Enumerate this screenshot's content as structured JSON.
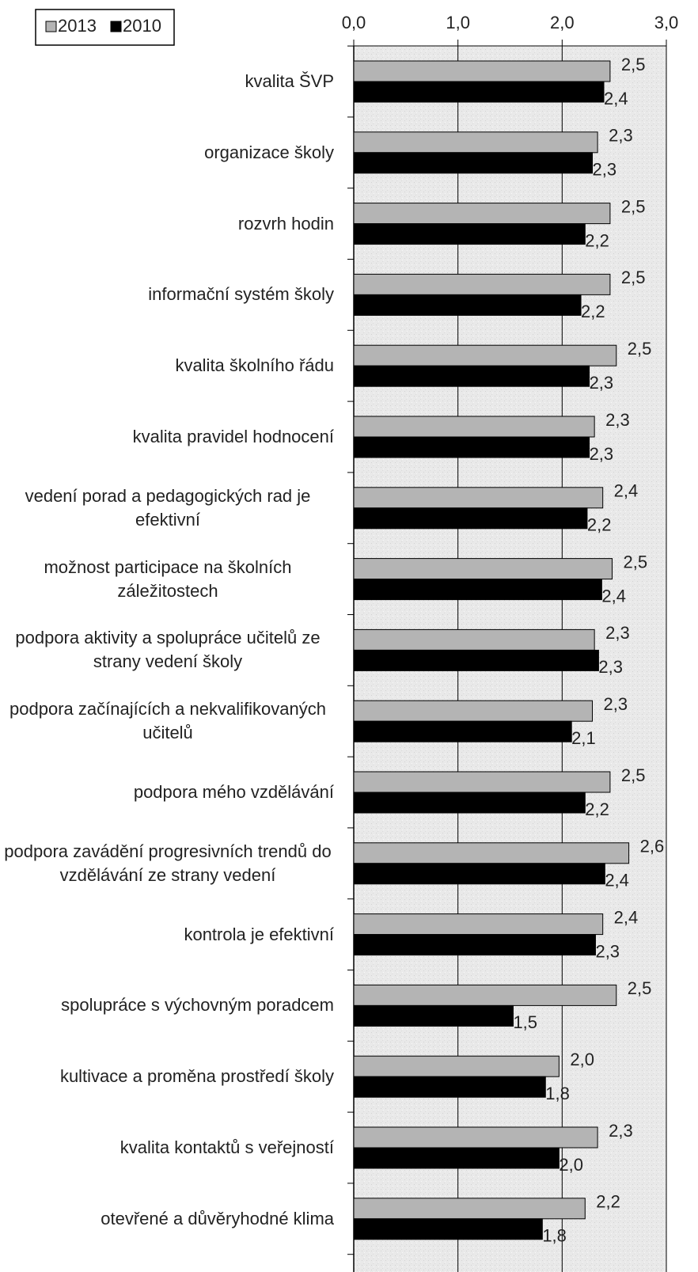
{
  "chart_data": {
    "type": "hbar",
    "categories": [
      "kvalita ŠVP",
      "organizace školy",
      "rozvrh hodin",
      "informační systém školy",
      "kvalita školního řádu",
      "kvalita pravidel hodnocení",
      "vedení porad a pedagogických rad je efektivní",
      "možnost participace na školních záležitostech",
      "podpora aktivity a spolupráce učitelů ze strany vedení školy",
      "podpora začínajících a nekvalifikovaných učitelů",
      "podpora mého vzdělávání",
      "podpora zavádění progresivních trendů do vzdělávání ze strany vedení",
      "kontrola je efektivní",
      "spolupráce s výchovným poradcem",
      "kultivace a proměna prostředí školy",
      "kvalita kontaktů s veřejností",
      "otevřené a důvěryhodné klima"
    ],
    "series": [
      {
        "name": "2013",
        "color": "#b4b4b4",
        "values": [
          2.46,
          2.34,
          2.46,
          2.46,
          2.52,
          2.31,
          2.39,
          2.48,
          2.31,
          2.29,
          2.46,
          2.64,
          2.39,
          2.52,
          1.97,
          2.34,
          2.22
        ],
        "value_labels": [
          "2,5",
          "2,3",
          "2,5",
          "2,5",
          "2,5",
          "2,3",
          "2,4",
          "2,5",
          "2,3",
          "2,3",
          "2,5",
          "2,6",
          "2,4",
          "2,5",
          "2,0",
          "2,3",
          "2,2"
        ]
      },
      {
        "name": "2010",
        "color": "#000000",
        "values": [
          2.4,
          2.29,
          2.22,
          2.18,
          2.26,
          2.26,
          2.24,
          2.38,
          2.35,
          2.09,
          2.22,
          2.41,
          2.32,
          1.53,
          1.84,
          1.97,
          1.81
        ],
        "value_labels": [
          "2,4",
          "2,3",
          "2,2",
          "2,2",
          "2,3",
          "2,3",
          "2,2",
          "2,4",
          "2,3",
          "2,1",
          "2,2",
          "2,4",
          "2,3",
          "1,5",
          "1,8",
          "2,0",
          "1,8"
        ]
      }
    ],
    "xlim": [
      0,
      3
    ],
    "xticks": [
      {
        "value": 0,
        "label": "0,0"
      },
      {
        "value": 1,
        "label": "1,0"
      },
      {
        "value": 2,
        "label": "2,0"
      },
      {
        "value": 3,
        "label": "3,0"
      }
    ],
    "grid": true,
    "legend": "top-left"
  }
}
